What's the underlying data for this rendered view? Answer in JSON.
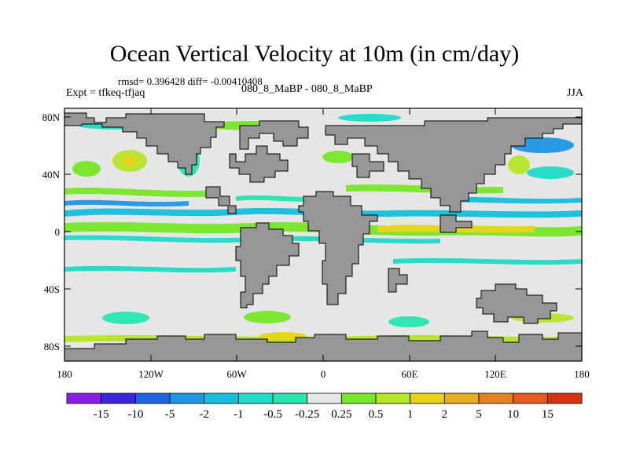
{
  "title": "Ocean Vertical Velocity at 10m (in cm/day)",
  "stats_text": "rmsd= 0.396428 diff= -0.00410408",
  "experiment_text": "Expt = tfkeq-tfjaq",
  "runs_text": "080_8_MaBP - 080_8_MaBP",
  "season": "JJA",
  "lat_ticks": [
    "80N",
    "40N",
    "0",
    "40S",
    "80S"
  ],
  "lon_ticks": [
    "180",
    "120W",
    "60W",
    "0",
    "60E",
    "120E",
    "180"
  ],
  "colorbar": {
    "labels": [
      "-15",
      "-10",
      "-5",
      "-2",
      "-1",
      "-0.5",
      "-0.25",
      "0.25",
      "0.5",
      "1",
      "2",
      "5",
      "10",
      "15"
    ],
    "colors": [
      "#8a1ee6",
      "#3c28dc",
      "#1e64e6",
      "#1e96e6",
      "#14bedc",
      "#1edcc8",
      "#28e6b4",
      "#e6e6e6",
      "#78e628",
      "#b4e628",
      "#e6d214",
      "#e6aa1e",
      "#e6821e",
      "#e65a1e",
      "#dc3214"
    ]
  },
  "colors": {
    "land": "#969696",
    "background": "#e6e6e6"
  }
}
